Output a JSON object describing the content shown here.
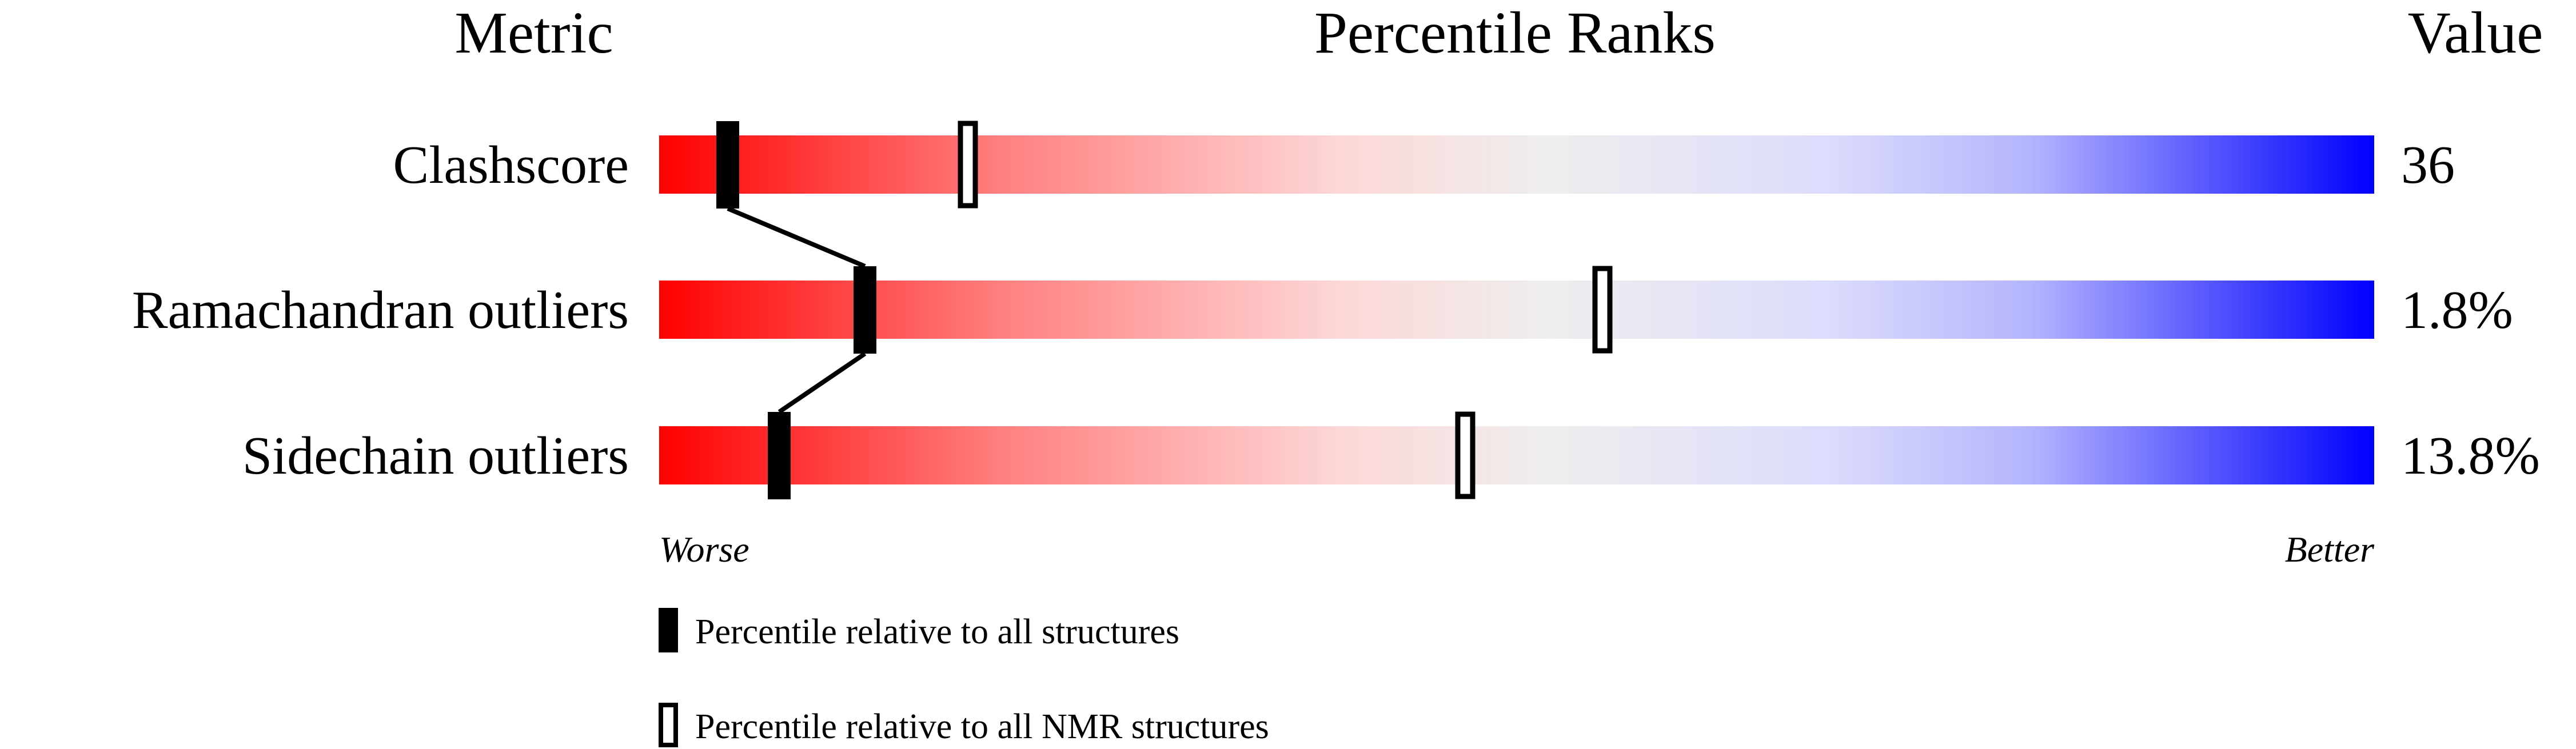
{
  "chart_data": {
    "type": "percentile-bar",
    "headers": {
      "metric": "Metric",
      "ranks": "Percentile Ranks",
      "value": "Value"
    },
    "axis": {
      "left": "Worse",
      "right": "Better",
      "range": [
        0,
        100
      ]
    },
    "gradient_colors": {
      "worse": "#ff0000",
      "middle": "#eeeeee",
      "better": "#0000ff"
    },
    "rows": [
      {
        "metric": "Clashscore",
        "value": "36",
        "percentile_all": 4,
        "percentile_nmr": 18
      },
      {
        "metric": "Ramachandran outliers",
        "value": "1.8%",
        "percentile_all": 12,
        "percentile_nmr": 55
      },
      {
        "metric": "Sidechain outliers",
        "value": "13.8%",
        "percentile_all": 7,
        "percentile_nmr": 47
      }
    ],
    "legend": [
      {
        "marker": "filled",
        "label": "Percentile relative to all structures"
      },
      {
        "marker": "open",
        "label": "Percentile relative to all NMR structures"
      }
    ]
  }
}
